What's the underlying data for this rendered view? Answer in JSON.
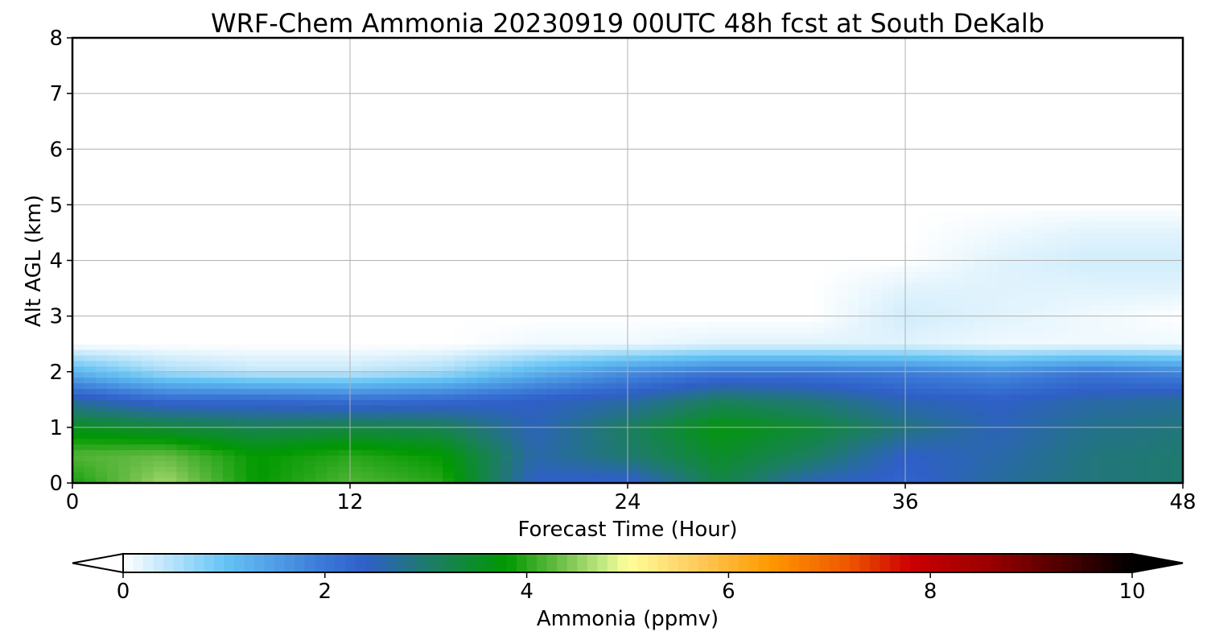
{
  "chart_data": {
    "type": "heatmap",
    "title": "WRF-Chem Ammonia  20230919 00UTC 48h fcst at South DeKalb",
    "xlabel": "Forecast Time (Hour)",
    "ylabel": "Alt AGL (km)",
    "xlim": [
      0,
      48
    ],
    "ylim": [
      0,
      8
    ],
    "xticks": [
      0,
      12,
      24,
      36,
      48
    ],
    "yticks": [
      0,
      1,
      2,
      3,
      4,
      5,
      6,
      7,
      8
    ],
    "grid": true,
    "colorbar": {
      "label": "Ammonia  (ppmv)",
      "orientation": "horizontal",
      "placement": "bottom",
      "range": [
        0,
        10
      ],
      "ticks": [
        0,
        2,
        4,
        6,
        8,
        10
      ],
      "extend": "both",
      "colormap": [
        {
          "value": 0,
          "color": "#ffffff"
        },
        {
          "value": 1,
          "color": "#66c4f5"
        },
        {
          "value": 2,
          "color": "#3a78d6"
        },
        {
          "value": 2.4,
          "color": "#2f5fc8"
        },
        {
          "value": 3,
          "color": "#1f7a6e"
        },
        {
          "value": 3.8,
          "color": "#009900"
        },
        {
          "value": 4.3,
          "color": "#66bb44"
        },
        {
          "value": 4.8,
          "color": "#ccee88"
        },
        {
          "value": 5,
          "color": "#ffff99"
        },
        {
          "value": 5.6,
          "color": "#ffd166"
        },
        {
          "value": 6.4,
          "color": "#ff9900"
        },
        {
          "value": 7.2,
          "color": "#ee5500"
        },
        {
          "value": 7.8,
          "color": "#cc0000"
        },
        {
          "value": 8.6,
          "color": "#990000"
        },
        {
          "value": 9.4,
          "color": "#440000"
        },
        {
          "value": 10,
          "color": "#000000"
        }
      ]
    },
    "field": {
      "hours": [
        0,
        4,
        8,
        12,
        16,
        20,
        24,
        28,
        32,
        36,
        40,
        44,
        48
      ],
      "altitudes_km": [
        0,
        0.5,
        1,
        1.5,
        2,
        2.5,
        3,
        3.5,
        4,
        4.5,
        5
      ],
      "values_ppmv": [
        [
          3.9,
          4.6,
          3.8,
          4.2,
          4.0,
          2.4,
          2.3,
          3.3,
          2.5,
          2.3,
          2.7,
          2.9,
          3.0
        ],
        [
          4.2,
          4.3,
          3.8,
          4.0,
          3.8,
          2.6,
          3.0,
          3.5,
          3.1,
          2.4,
          2.6,
          2.9,
          3.0
        ],
        [
          3.6,
          3.4,
          3.2,
          3.3,
          3.2,
          2.5,
          3.1,
          3.7,
          3.4,
          2.9,
          2.5,
          2.8,
          2.9
        ],
        [
          2.6,
          2.2,
          2.2,
          2.1,
          2.2,
          2.4,
          2.6,
          3.1,
          2.9,
          2.5,
          2.4,
          2.6,
          2.7
        ],
        [
          1.2,
          0.6,
          0.4,
          0.4,
          0.6,
          1.2,
          1.7,
          2.0,
          2.0,
          1.9,
          1.7,
          2.0,
          1.8
        ],
        [
          0.0,
          0.0,
          0.0,
          0.0,
          0.0,
          0.1,
          0.1,
          0.2,
          0.2,
          0.2,
          0.1,
          0.1,
          0.1
        ],
        [
          0.0,
          0.0,
          0.0,
          0.0,
          0.0,
          0.0,
          0.0,
          0.0,
          0.0,
          0.3,
          0.2,
          0.1,
          0.0
        ],
        [
          0.0,
          0.0,
          0.0,
          0.0,
          0.0,
          0.0,
          0.0,
          0.0,
          0.0,
          0.2,
          0.2,
          0.2,
          0.2
        ],
        [
          0.0,
          0.0,
          0.0,
          0.0,
          0.0,
          0.0,
          0.0,
          0.0,
          0.0,
          0.0,
          0.2,
          0.3,
          0.3
        ],
        [
          0.0,
          0.0,
          0.0,
          0.0,
          0.0,
          0.0,
          0.0,
          0.0,
          0.0,
          0.0,
          0.1,
          0.2,
          0.2
        ],
        [
          0.0,
          0.0,
          0.0,
          0.0,
          0.0,
          0.0,
          0.0,
          0.0,
          0.0,
          0.0,
          0.0,
          0.0,
          0.0
        ]
      ]
    }
  }
}
